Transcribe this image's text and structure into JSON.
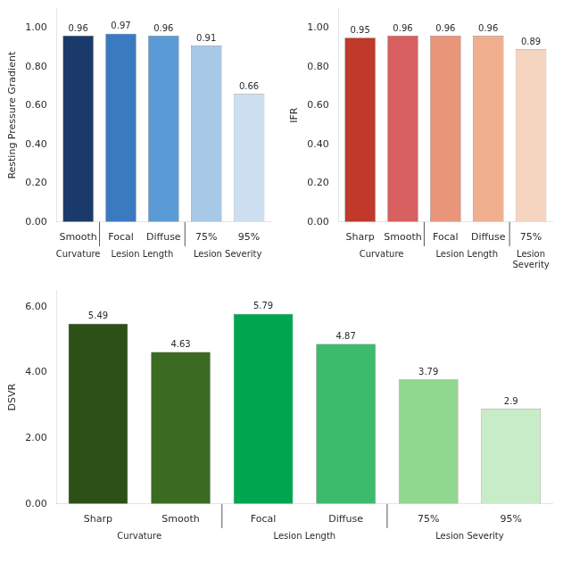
{
  "chart_data": [
    {
      "type": "bar",
      "ylabel": "Resting Pressure Gradient",
      "categories": [
        "Smooth",
        "Focal",
        "Diffuse",
        "75%",
        "95%"
      ],
      "values": [
        0.96,
        0.97,
        0.96,
        0.91,
        0.66
      ],
      "colors": [
        "#1a3a6b",
        "#3a7abf",
        "#5b9bd5",
        "#a8c8e8",
        "#ccdff0"
      ],
      "ylim": [
        0,
        1.1
      ],
      "yticks": [
        {
          "value": 0,
          "label": "0.00"
        },
        {
          "value": 0.2,
          "label": "0.20"
        },
        {
          "value": 0.4,
          "label": "0.40"
        },
        {
          "value": 0.6,
          "label": "0.60"
        },
        {
          "value": 0.8,
          "label": "0.80"
        },
        {
          "value": 1,
          "label": "1.00"
        }
      ],
      "groups": [
        {
          "label": "Curvature",
          "categories": [
            "Smooth"
          ]
        },
        {
          "label": "Lesion Length",
          "categories": [
            "Focal",
            "Diffuse"
          ]
        },
        {
          "label": "Lesion Severity",
          "categories": [
            "75%",
            "95%"
          ]
        }
      ],
      "data_labels": true,
      "grid": false
    },
    {
      "type": "bar",
      "ylabel": "IFR",
      "categories": [
        "Sharp",
        "Smooth",
        "Focal",
        "Diffuse",
        "75%"
      ],
      "values": [
        0.95,
        0.96,
        0.96,
        0.96,
        0.89
      ],
      "colors": [
        "#c0392b",
        "#d96060",
        "#e8957a",
        "#f0b090",
        "#f5d5c0"
      ],
      "ylim": [
        0,
        1.1
      ],
      "yticks": [
        {
          "value": 0,
          "label": "0.00"
        },
        {
          "value": 0.2,
          "label": "0.20"
        },
        {
          "value": 0.4,
          "label": "0.40"
        },
        {
          "value": 0.6,
          "label": "0.60"
        },
        {
          "value": 0.8,
          "label": "0.80"
        },
        {
          "value": 1,
          "label": "1.00"
        }
      ],
      "groups": [
        {
          "label": "Curvature",
          "categories": [
            "Sharp",
            "Smooth"
          ]
        },
        {
          "label": "Lesion Length",
          "categories": [
            "Focal",
            "Diffuse"
          ]
        },
        {
          "label": "Lesion\nSeverity",
          "categories": [
            "75%"
          ]
        }
      ],
      "data_labels": true,
      "grid": false
    },
    {
      "type": "bar",
      "ylabel": "DSVR",
      "categories": [
        "Sharp",
        "Smooth",
        "Focal",
        "Diffuse",
        "75%",
        "95%"
      ],
      "values": [
        5.49,
        4.63,
        5.79,
        4.87,
        3.79,
        2.9
      ],
      "colors": [
        "#2d5016",
        "#3a6b20",
        "#00a550",
        "#3dbb6d",
        "#90d890",
        "#c8ecc8"
      ],
      "ylim": [
        0,
        6.5
      ],
      "yticks": [
        {
          "value": 0,
          "label": "0.00"
        },
        {
          "value": 2,
          "label": "2.00"
        },
        {
          "value": 4,
          "label": "4.00"
        },
        {
          "value": 6,
          "label": "6.00"
        }
      ],
      "groups": [
        {
          "label": "Curvature",
          "categories": [
            "Sharp",
            "Smooth"
          ]
        },
        {
          "label": "Lesion Length",
          "categories": [
            "Focal",
            "Diffuse"
          ]
        },
        {
          "label": "Lesion Severity",
          "categories": [
            "75%",
            "95%"
          ]
        }
      ],
      "data_labels": true,
      "grid": false
    }
  ]
}
